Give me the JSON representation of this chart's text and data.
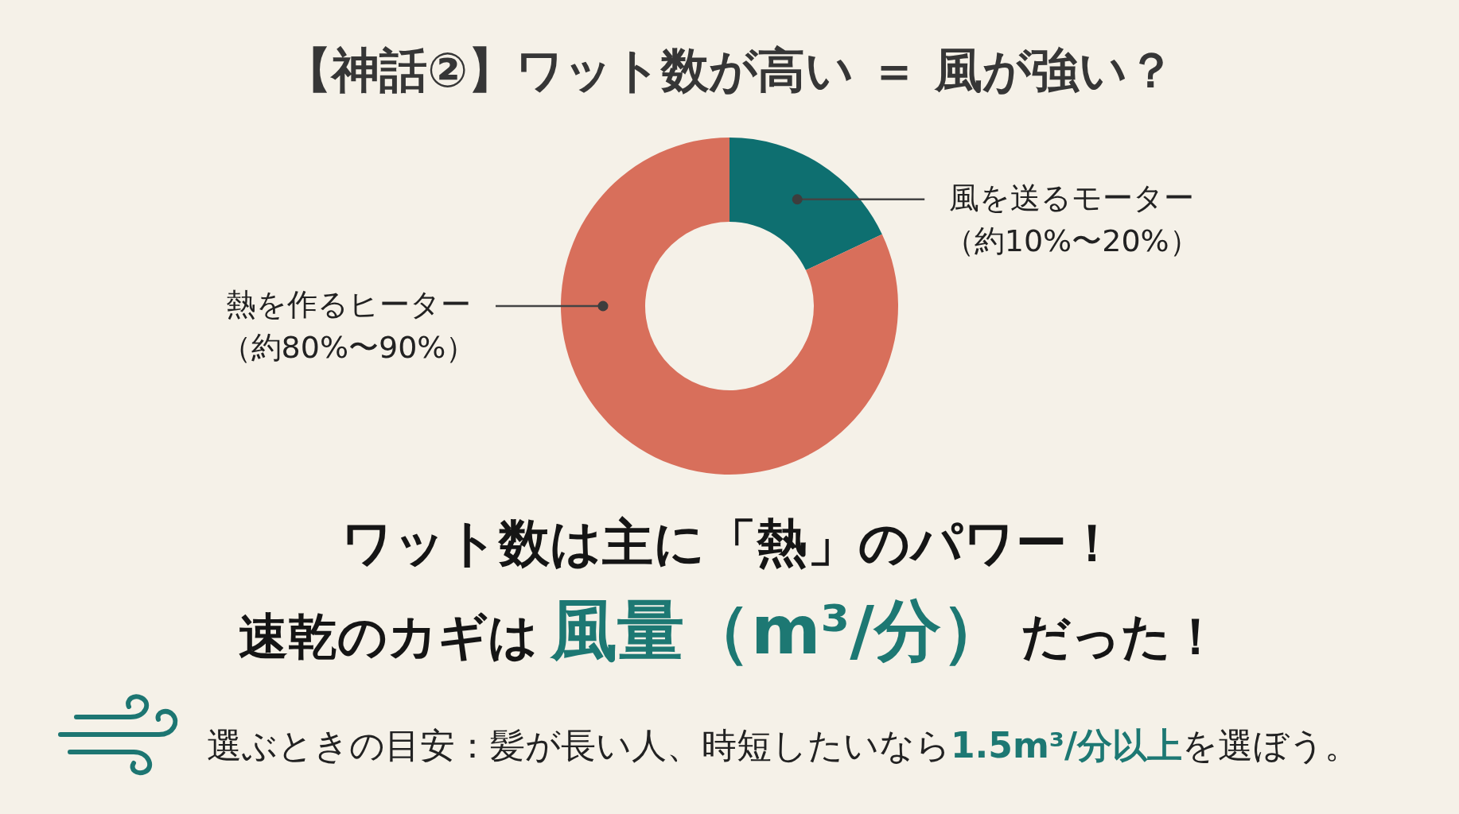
{
  "chart_data": {
    "type": "donut",
    "title": "【神話②】ワット数が高い ＝ 風が強い？",
    "categories": [
      "風を送るモーター（約10%〜20%）",
      "熱を作るヒーター（約80%〜90%）"
    ],
    "values": [
      18,
      82
    ],
    "colors": [
      "#0e6f70",
      "#d86f5b"
    ],
    "annotations": [
      "ワット数は主に「熱」のパワー！",
      "速乾のカギは",
      "風量（m³/分）",
      "だった！",
      "選ぶときの目安：髪が長い人、時短したいなら",
      "1.5m³/分以上",
      "を選ぼう。"
    ]
  }
}
